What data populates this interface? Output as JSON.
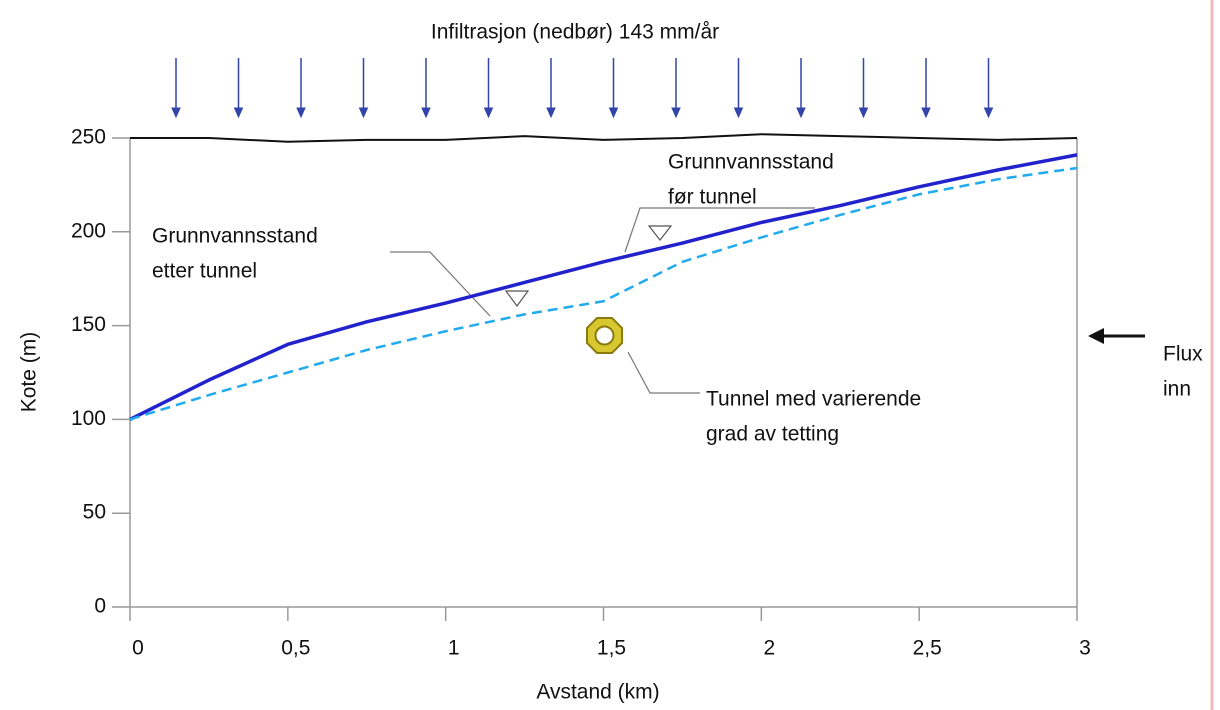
{
  "chart_data": {
    "type": "line",
    "title": "Infiltrasjon (nedbør) 143 mm/år",
    "x_label": "Avstand (km)",
    "y_label": "Kote (m)",
    "x": [
      0,
      0.25,
      0.5,
      0.75,
      1,
      1.25,
      1.5,
      1.75,
      2,
      2.25,
      2.5,
      2.75,
      3
    ],
    "series": [
      {
        "color": "#111111",
        "values": [
          250,
          250,
          248,
          249,
          249,
          251,
          249,
          250,
          252,
          251,
          250,
          249,
          250
        ]
      },
      {
        "color": "#2222cc",
        "values": [
          100,
          121,
          140,
          152,
          162,
          173,
          184,
          194,
          205,
          214,
          224,
          233,
          241
        ]
      },
      {
        "color": "#22aaee",
        "dashed": true,
        "values": [
          100,
          113,
          125,
          137,
          147,
          156,
          163,
          184,
          197,
          209,
          220,
          228,
          234
        ]
      }
    ],
    "xlim": [
      0,
      3
    ],
    "ylim": [
      0,
      250
    ],
    "xticks": [
      0,
      {
        "value": 0.5,
        "label": "0,5"
      },
      1,
      {
        "value": 1.5,
        "label": "1,5"
      },
      2,
      {
        "value": 2.5,
        "label": "2,5"
      },
      3
    ],
    "yticks": [
      0,
      50,
      100,
      150,
      200,
      250
    ],
    "annotations": [
      {
        "lines": [
          "Grunnvannsstand",
          "før tunnel"
        ]
      },
      {
        "lines": [
          "Grunnvannsstand",
          "etter tunnel"
        ]
      },
      {
        "lines": [
          "Tunnel med varierende",
          "grad av tetting"
        ]
      },
      {
        "lines": [
          "Flux",
          "inn"
        ]
      }
    ]
  }
}
